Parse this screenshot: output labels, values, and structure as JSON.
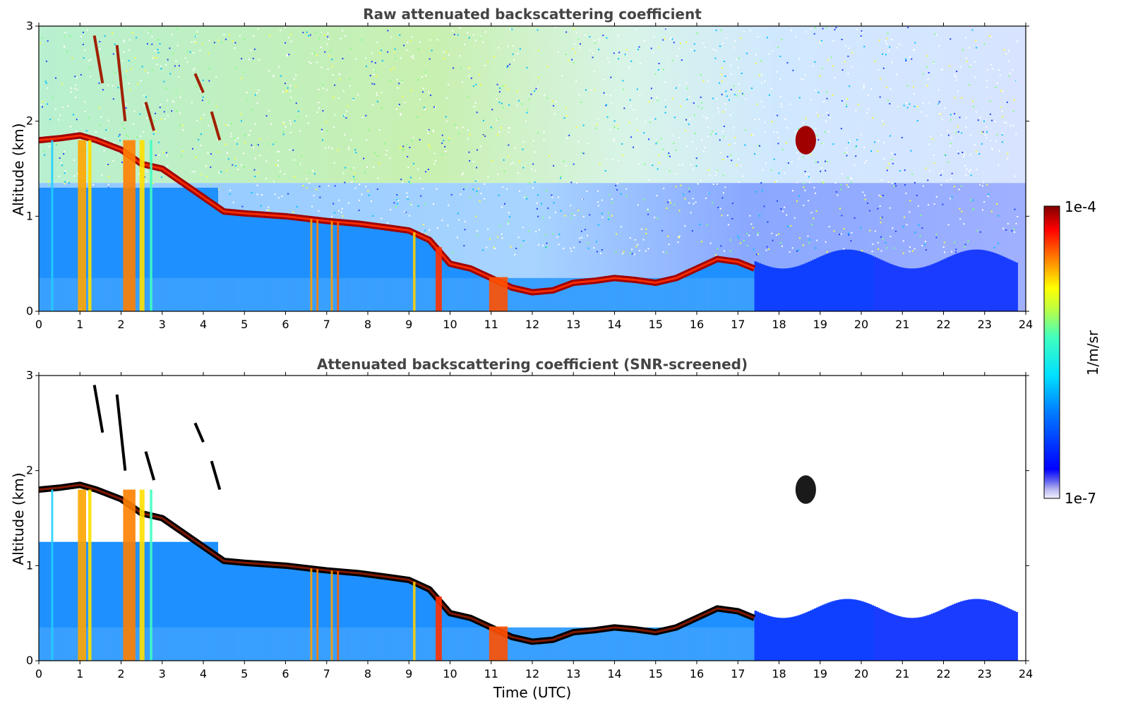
{
  "chart_data": [
    {
      "type": "heatmap",
      "title": "Raw attenuated backscattering coefficient",
      "xlabel": "",
      "ylabel": "Altitude (km)",
      "xlim": [
        0,
        24
      ],
      "ylim": [
        0,
        3
      ],
      "xticks": [
        "0",
        "1",
        "2",
        "3",
        "4",
        "5",
        "6",
        "7",
        "8",
        "9",
        "10",
        "11",
        "12",
        "13",
        "14",
        "15",
        "16",
        "17",
        "18",
        "19",
        "20",
        "21",
        "22",
        "23",
        "24"
      ],
      "yticks": [
        "0",
        "1",
        "2",
        "3"
      ],
      "features": {
        "cloud_layer": {
          "time": [
            0.0,
            0.5,
            1.0,
            1.4,
            2.0,
            2.5,
            3.0,
            4.5,
            5.0,
            6.0,
            7.0,
            7.8,
            8.5,
            9.0,
            9.5,
            10.0,
            10.5,
            11.0,
            11.5,
            12.0,
            12.5,
            13.0,
            13.5,
            14.0,
            14.5,
            15.0,
            15.5,
            16.0,
            16.5,
            17.0,
            17.4
          ],
          "altitude_km": [
            1.8,
            1.82,
            1.85,
            1.8,
            1.7,
            1.55,
            1.5,
            1.05,
            1.03,
            1.0,
            0.95,
            0.92,
            0.88,
            0.85,
            0.75,
            0.5,
            0.45,
            0.35,
            0.25,
            0.2,
            0.22,
            0.3,
            0.32,
            0.35,
            0.33,
            0.3,
            0.35,
            0.45,
            0.55,
            0.52,
            0.45
          ]
        },
        "isolated_cloud": {
          "time": [
            18.4,
            18.9
          ],
          "altitude_km": [
            1.65,
            1.95
          ]
        }
      },
      "colorbar": {
        "label": "1/m/sr",
        "min_label": "1e-7",
        "max_label": "1e-4",
        "scale": "log",
        "colormap": "jet"
      }
    },
    {
      "type": "heatmap",
      "title": "Attenuated backscattering coefficient (SNR-screened)",
      "xlabel": "Time (UTC)",
      "ylabel": "Altitude (km)",
      "xlim": [
        0,
        24
      ],
      "ylim": [
        0,
        3
      ],
      "xticks": [
        "0",
        "1",
        "2",
        "3",
        "4",
        "5",
        "6",
        "7",
        "8",
        "9",
        "10",
        "11",
        "12",
        "13",
        "14",
        "15",
        "16",
        "17",
        "18",
        "19",
        "20",
        "21",
        "22",
        "23",
        "24"
      ],
      "yticks": [
        "0",
        "1",
        "2",
        "3"
      ],
      "colorbar": {
        "label": "1/m/sr",
        "min_label": "1e-7",
        "max_label": "1e-4",
        "scale": "log",
        "colormap": "jet"
      }
    }
  ],
  "colorbar": {
    "label": "1/m/sr",
    "min_label": "1e-7",
    "max_label": "1e-4"
  }
}
